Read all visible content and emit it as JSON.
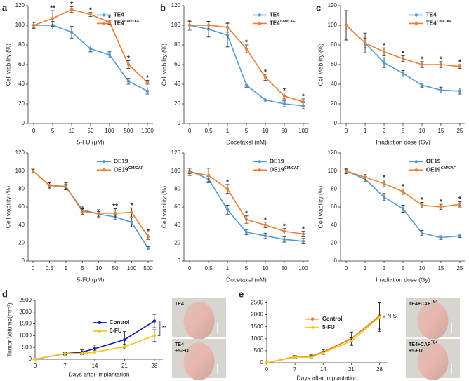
{
  "chart_data": [
    {
      "type": "line",
      "panel_label": "a",
      "xlabel": "5-FU (μM)",
      "ylabel": "Cell viability (%)",
      "categories": [
        "0",
        "5",
        "10",
        "50",
        "100",
        "500",
        "1000"
      ],
      "ylim": [
        0,
        120
      ],
      "yticks": [
        0,
        20,
        40,
        60,
        80,
        100,
        120
      ],
      "legend": "upper right",
      "series": [
        {
          "name": "TE4",
          "color": "#4f9bd3",
          "values": [
            100,
            100,
            93,
            76,
            70,
            43,
            33
          ],
          "errors": [
            3,
            4,
            6,
            3,
            3,
            3,
            3
          ]
        },
        {
          "name": "TE4",
          "sup": "CM/CAF",
          "color": "#ed7d31",
          "values": [
            100,
            107,
            116,
            111,
            103,
            60,
            42
          ],
          "errors": [
            3,
            8,
            3,
            2,
            2,
            4,
            2
          ]
        }
      ],
      "annotations": [
        {
          "text": "**",
          "at": "5"
        },
        {
          "text": "*",
          "at": "10"
        },
        {
          "text": "*",
          "at": "50"
        },
        {
          "text": "*",
          "at": "100"
        },
        {
          "text": "*",
          "at": "500"
        },
        {
          "text": "*",
          "at": "1000"
        }
      ]
    },
    {
      "type": "line",
      "panel_label": "b",
      "xlabel": "Docetaxel (nM)",
      "ylabel": "Cell viability (%)",
      "categories": [
        "0",
        "0.5",
        "1",
        "5",
        "10",
        "50",
        "100"
      ],
      "ylim": [
        0,
        120
      ],
      "yticks": [
        0,
        20,
        40,
        60,
        80,
        100,
        120
      ],
      "legend": "upper right",
      "series": [
        {
          "name": "TE4",
          "color": "#4f9bd3",
          "values": [
            100,
            96,
            90,
            39,
            24,
            20,
            18
          ],
          "errors": [
            5,
            8,
            12,
            2,
            2,
            3,
            3
          ]
        },
        {
          "name": "TE4",
          "sup": "CM/CAF",
          "color": "#ed7d31",
          "values": [
            100,
            100,
            98,
            76,
            47,
            28,
            22
          ],
          "errors": [
            4,
            4,
            5,
            4,
            3,
            3,
            3
          ]
        }
      ],
      "annotations": [
        {
          "text": "*",
          "at": "5"
        },
        {
          "text": "*",
          "at": "10"
        },
        {
          "text": "*",
          "at": "50"
        },
        {
          "text": "*",
          "at": "100"
        }
      ]
    },
    {
      "type": "line",
      "panel_label": "c",
      "xlabel": "Irradiation dose (Gy)",
      "ylabel": "Cell viability (%)",
      "categories": [
        "0",
        "1",
        "2",
        "5",
        "10",
        "15",
        "25"
      ],
      "ylim": [
        0,
        120
      ],
      "yticks": [
        0,
        20,
        40,
        60,
        80,
        100,
        120
      ],
      "legend": "upper right",
      "series": [
        {
          "name": "TE4",
          "color": "#4f9bd3",
          "values": [
            100,
            82,
            62,
            51,
            39,
            34,
            33
          ],
          "errors": [
            15,
            5,
            5,
            3,
            2,
            3,
            3
          ]
        },
        {
          "name": "TE4",
          "sup": "CM/CAF",
          "color": "#ed7d31",
          "values": [
            100,
            82,
            73,
            66,
            60,
            60,
            58
          ],
          "errors": [
            15,
            10,
            4,
            3,
            3,
            3,
            2
          ]
        }
      ],
      "annotations": [
        {
          "text": "*",
          "at": "2"
        },
        {
          "text": "*",
          "at": "5"
        },
        {
          "text": "*",
          "at": "10"
        },
        {
          "text": "*",
          "at": "15"
        },
        {
          "text": "*",
          "at": "25"
        }
      ]
    },
    {
      "type": "line",
      "xlabel": "5-FU (μM)",
      "ylabel": "Cell viability (%)",
      "categories": [
        "0",
        "0.5",
        "1",
        "5",
        "10",
        "50",
        "100",
        "500"
      ],
      "ylim": [
        0,
        120
      ],
      "yticks": [
        0,
        20,
        40,
        60,
        80,
        100,
        120
      ],
      "legend": "upper right",
      "series": [
        {
          "name": "OE19",
          "color": "#4f9bd3",
          "values": [
            100,
            84,
            82,
            57,
            52,
            49,
            43,
            14
          ],
          "errors": [
            2,
            3,
            3,
            3,
            3,
            3,
            5,
            2
          ]
        },
        {
          "name": "OE19",
          "sup": "CM/CAF",
          "color": "#ed7d31",
          "values": [
            100,
            84,
            83,
            55,
            53,
            53,
            54,
            27
          ],
          "errors": [
            2,
            3,
            4,
            3,
            4,
            5,
            5,
            3
          ]
        }
      ],
      "annotations": [
        {
          "text": "**",
          "at": "50"
        },
        {
          "text": "*",
          "at": "100"
        },
        {
          "text": "*",
          "at": "500"
        }
      ]
    },
    {
      "type": "line",
      "xlabel": "Docetaxel (nM)",
      "ylabel": "Cell viability (%)",
      "categories": [
        "0",
        "0.5",
        "1",
        "5",
        "10",
        "50",
        "100"
      ],
      "ylim": [
        0,
        120
      ],
      "yticks": [
        0,
        20,
        40,
        60,
        80,
        100,
        120
      ],
      "legend": "upper right",
      "series": [
        {
          "name": "OE19",
          "color": "#4f9bd3",
          "values": [
            100,
            91,
            57,
            32,
            28,
            24,
            22
          ],
          "errors": [
            3,
            3,
            5,
            3,
            3,
            3,
            3
          ]
        },
        {
          "name": "OE19",
          "sup": "CM/CAF",
          "color": "#ed7d31",
          "values": [
            99,
            95,
            80,
            46,
            40,
            33,
            30
          ],
          "errors": [
            4,
            8,
            5,
            4,
            3,
            3,
            3
          ]
        }
      ],
      "annotations": [
        {
          "text": "*",
          "at": "1"
        },
        {
          "text": "*",
          "at": "5"
        },
        {
          "text": "*",
          "at": "10"
        },
        {
          "text": "*",
          "at": "50"
        },
        {
          "text": "*",
          "at": "100"
        }
      ]
    },
    {
      "type": "line",
      "xlabel": "Irradiation dose (Gy)",
      "ylabel": "Cell viability (%)",
      "categories": [
        "0",
        "1",
        "2",
        "5",
        "10",
        "15",
        "25"
      ],
      "ylim": [
        0,
        120
      ],
      "yticks": [
        0,
        20,
        40,
        60,
        80,
        100,
        120
      ],
      "legend": "upper right",
      "series": [
        {
          "name": "OE19",
          "color": "#4f9bd3",
          "values": [
            100,
            91,
            71,
            58,
            31,
            26,
            28
          ],
          "errors": [
            2,
            3,
            4,
            4,
            3,
            2,
            2
          ]
        },
        {
          "name": "OE19",
          "sup": "CM/CAF",
          "color": "#ed7d31",
          "values": [
            100,
            93,
            86,
            77,
            62,
            60,
            63
          ],
          "errors": [
            3,
            3,
            4,
            3,
            3,
            3,
            3
          ]
        }
      ],
      "annotations": [
        {
          "text": "*",
          "at": "2"
        },
        {
          "text": "*",
          "at": "5"
        },
        {
          "text": "*",
          "at": "10"
        },
        {
          "text": "*",
          "at": "15"
        },
        {
          "text": "*",
          "at": "25"
        }
      ]
    },
    {
      "type": "line",
      "panel_label": "d",
      "xlabel": "Days after implantation",
      "ylabel": "Tumor Volume(mm³)",
      "x": [
        0,
        7,
        11,
        14,
        21,
        28
      ],
      "xlim": [
        0,
        30
      ],
      "xticks": [
        0,
        7,
        14,
        21,
        28
      ],
      "ylim": [
        0,
        2500
      ],
      "yticks": [
        0,
        500,
        1000,
        1500,
        2000,
        2500
      ],
      "legend": "center",
      "series": [
        {
          "name": "Control",
          "color": "#1a1aa8",
          "values": [
            0,
            240,
            300,
            450,
            830,
            1620
          ],
          "errors": [
            0,
            60,
            100,
            150,
            350,
            280
          ]
        },
        {
          "name": "5-FU",
          "color": "#f5c518",
          "values": [
            0,
            240,
            250,
            300,
            530,
            1000
          ],
          "errors": [
            0,
            40,
            50,
            80,
            100,
            250
          ]
        }
      ],
      "annotations": [
        {
          "text": "**",
          "at": 28,
          "bracket": true
        }
      ],
      "photos": [
        {
          "lines": [
            {
              "text": "TE4"
            }
          ]
        },
        {
          "lines": [
            {
              "text": "TE4"
            },
            {
              "text": "+5-FU"
            }
          ]
        }
      ]
    },
    {
      "type": "line",
      "panel_label": "e",
      "xlabel": "Days after implantation",
      "x": [
        0,
        7,
        11,
        14,
        21,
        28
      ],
      "xlim": [
        0,
        30
      ],
      "xticks": [
        0,
        7,
        14,
        21,
        28
      ],
      "ylim": [
        0,
        2600
      ],
      "yticks": [
        0,
        500,
        1000,
        1500,
        2000,
        2500
      ],
      "legend": "upper center",
      "series": [
        {
          "name": "Control",
          "color": "#e07b2a",
          "values": [
            0,
            250,
            270,
            450,
            1000,
            1950
          ],
          "errors": [
            0,
            50,
            60,
            100,
            280,
            550
          ]
        },
        {
          "name": "5-FU",
          "color": "#f5c518",
          "values": [
            0,
            230,
            230,
            420,
            900,
            1900
          ],
          "errors": [
            0,
            60,
            70,
            60,
            150,
            600
          ]
        }
      ],
      "annotations": [
        {
          "text": "N.S.",
          "at": 28,
          "bracket": true
        }
      ],
      "photos": [
        {
          "lines": [
            {
              "text": "TE4+CAF",
              "sup": "TE4"
            }
          ]
        },
        {
          "lines": [
            {
              "text": "TE4+CAF",
              "sup": "TE4"
            },
            {
              "text": "+5-FU"
            }
          ]
        }
      ]
    }
  ]
}
